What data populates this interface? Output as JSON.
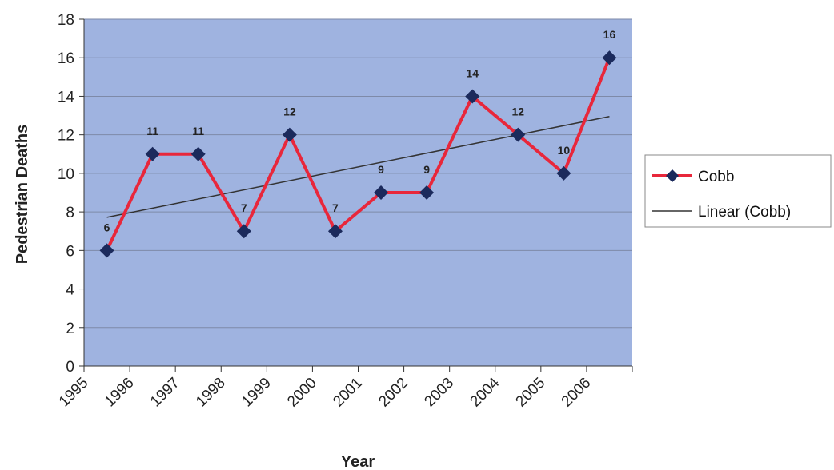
{
  "chart_data": {
    "type": "line",
    "title": "",
    "xlabel": "Year",
    "ylabel": "Pedestrian Deaths",
    "ylim": [
      0,
      18
    ],
    "ytick_step": 2,
    "categories": [
      "1995",
      "1996",
      "1997",
      "1998",
      "1999",
      "2000",
      "2001",
      "2002",
      "2003",
      "2004",
      "2005",
      "2006"
    ],
    "series": [
      {
        "name": "Cobb",
        "values": [
          6,
          11,
          11,
          7,
          12,
          7,
          9,
          9,
          14,
          12,
          10,
          16
        ],
        "color": "#e8273b",
        "marker": "diamond",
        "marker_color": "#1b2a5c"
      },
      {
        "name": "Linear (Cobb)",
        "type": "trendline",
        "of_series": "Cobb",
        "color": "#333333"
      }
    ],
    "data_labels": true,
    "grid": true,
    "plot_background": "#9fb3e0",
    "legend_position": "right"
  }
}
